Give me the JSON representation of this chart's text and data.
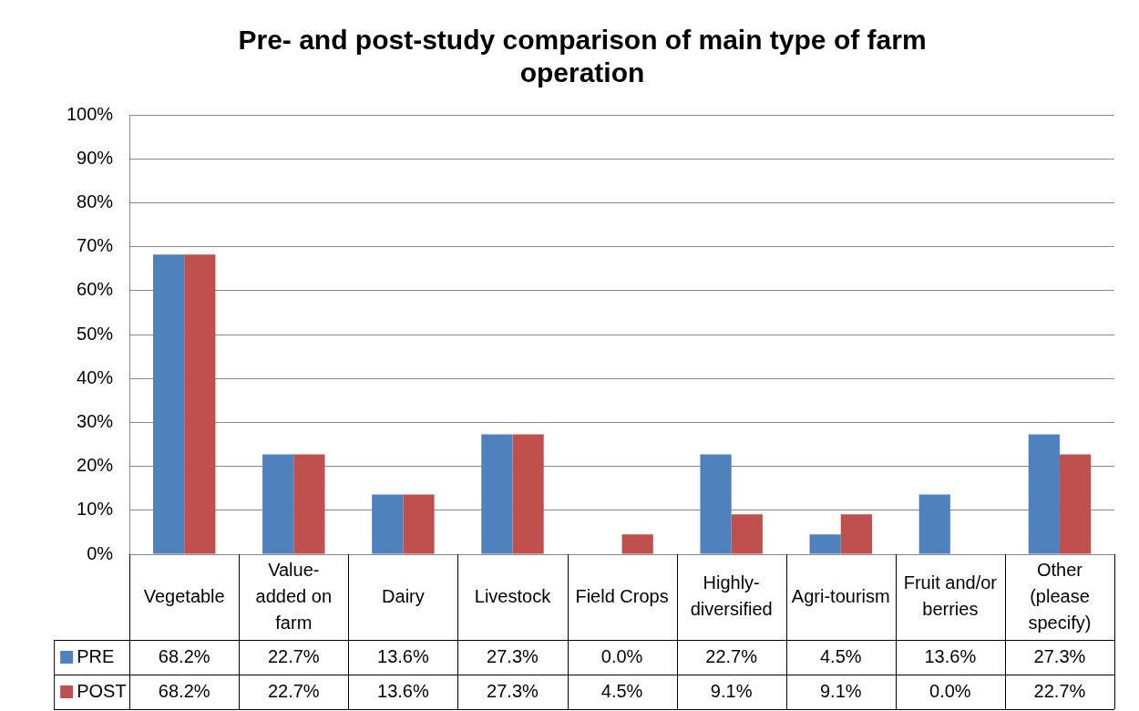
{
  "chart_data": {
    "type": "bar",
    "title": "Pre- and post-study comparison of main type of farm operation",
    "categories": [
      "Vegetable",
      "Value-added on farm",
      "Dairy",
      "Livestock",
      "Field Crops",
      "Highly-diversified",
      "Agri-tourism",
      "Fruit and/or berries",
      "Other (please specify)"
    ],
    "series": [
      {
        "name": "PRE",
        "color": "#4f81bd",
        "values": [
          68.2,
          22.7,
          13.6,
          27.3,
          0.0,
          22.7,
          4.5,
          13.6,
          27.3
        ],
        "value_labels": [
          "68.2%",
          "22.7%",
          "13.6%",
          "27.3%",
          "0.0%",
          "22.7%",
          "4.5%",
          "13.6%",
          "27.3%"
        ]
      },
      {
        "name": "POST",
        "color": "#c0504d",
        "values": [
          68.2,
          22.7,
          13.6,
          27.3,
          4.5,
          9.1,
          9.1,
          0.0,
          22.7
        ],
        "value_labels": [
          "68.2%",
          "22.7%",
          "13.6%",
          "27.3%",
          "4.5%",
          "9.1%",
          "9.1%",
          "0.0%",
          "22.7%"
        ]
      }
    ],
    "ylim": [
      0,
      100
    ],
    "yticks": [
      {
        "value": 0,
        "label": "0%"
      },
      {
        "value": 10,
        "label": "10%"
      },
      {
        "value": 20,
        "label": "20%"
      },
      {
        "value": 30,
        "label": "30%"
      },
      {
        "value": 40,
        "label": "40%"
      },
      {
        "value": 50,
        "label": "50%"
      },
      {
        "value": 60,
        "label": "60%"
      },
      {
        "value": 70,
        "label": "70%"
      },
      {
        "value": 80,
        "label": "80%"
      },
      {
        "value": 90,
        "label": "90%"
      },
      {
        "value": 100,
        "label": "100%"
      }
    ],
    "grid": "y",
    "legend": "bottom left"
  }
}
